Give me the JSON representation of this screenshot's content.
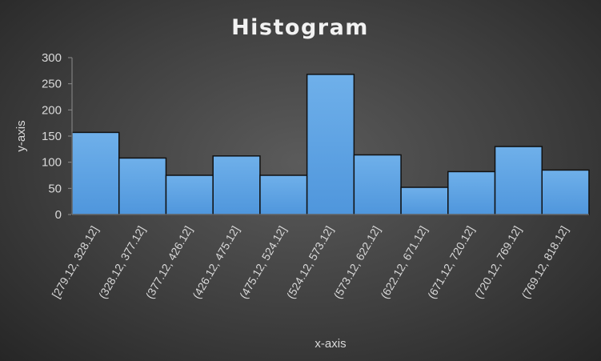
{
  "chart_data": {
    "type": "bar",
    "title": "Histogram",
    "xlabel": "x-axis",
    "ylabel": "y-axis",
    "categories": [
      "[279.12, 328.12]",
      "(328.12, 377.12]",
      "(377.12, 426.12]",
      "(426.12, 475.12]",
      "(475.12, 524.12]",
      "(524.12, 573.12]",
      "(573.12, 622.12]",
      "(622.12, 671.12]",
      "(671.12, 720.12]",
      "(720.12, 769.12]",
      "(769.12, 818.12]"
    ],
    "values": [
      157,
      108,
      75,
      112,
      75,
      268,
      114,
      52,
      82,
      130,
      85
    ],
    "ylim": [
      0,
      300
    ],
    "yticks": [
      0,
      50,
      100,
      150,
      200,
      250,
      300
    ],
    "grid": false,
    "legend": "none",
    "bar_color": "#4f96dc",
    "bar_gradient_top": "#6fb0ea",
    "bar_outline": "#111111",
    "axis_color": "#8c8c8c"
  }
}
